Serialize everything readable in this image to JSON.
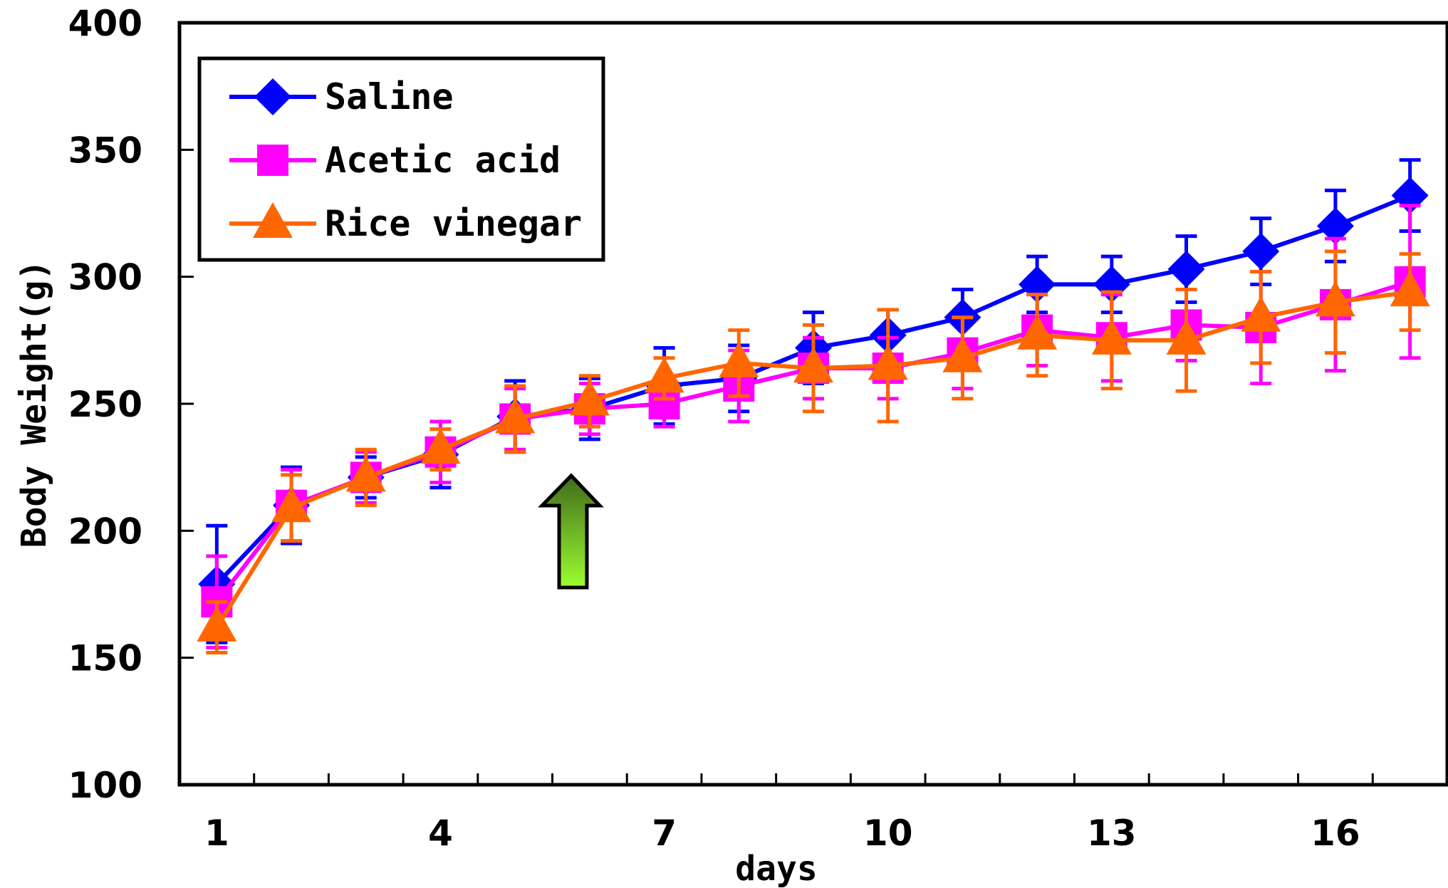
{
  "chart_data": {
    "type": "line",
    "xlabel": "days",
    "ylabel": "Body Weight(g)",
    "xlim": [
      0.5,
      17.5
    ],
    "ylim": [
      100,
      400
    ],
    "x": [
      1,
      2,
      3,
      4,
      5,
      6,
      7,
      8,
      9,
      10,
      11,
      12,
      13,
      14,
      15,
      16,
      17
    ],
    "x_tick_labels": [
      "1",
      "4",
      "7",
      "10",
      "13",
      "16"
    ],
    "x_tick_values": [
      1,
      4,
      7,
      10,
      13,
      16
    ],
    "y_tick_labels": [
      "100",
      "150",
      "200",
      "250",
      "300",
      "350",
      "400"
    ],
    "y_tick_values": [
      100,
      150,
      200,
      250,
      300,
      350,
      400
    ],
    "grid": false,
    "legend_position": "top-left",
    "annotations": [
      {
        "type": "up-arrow",
        "x": 5.75,
        "y": 215,
        "color": "#80e020"
      }
    ],
    "series": [
      {
        "name": "Saline",
        "color": "#0000ff",
        "marker": "diamond",
        "values": [
          179,
          210,
          221,
          230,
          245,
          248,
          257,
          260,
          272,
          277,
          284,
          297,
          297,
          303,
          310,
          320,
          332
        ],
        "error": [
          23,
          15,
          8,
          13,
          14,
          12,
          15,
          13,
          14,
          10,
          11,
          11,
          11,
          13,
          13,
          14,
          14
        ]
      },
      {
        "name": "Acetic acid",
        "color": "#ff00ff",
        "marker": "square",
        "values": [
          172,
          210,
          221,
          231,
          244,
          248,
          250,
          257,
          264,
          264,
          270,
          279,
          276,
          281,
          280,
          289,
          298
        ],
        "error": [
          18,
          14,
          10,
          12,
          12,
          10,
          9,
          14,
          12,
          12,
          14,
          14,
          17,
          14,
          22,
          26,
          30
        ]
      },
      {
        "name": "Rice vinegar",
        "color": "#ff6600",
        "marker": "triangle",
        "values": [
          162,
          209,
          221,
          232,
          244,
          251,
          260,
          266,
          264,
          265,
          268,
          277,
          275,
          275,
          284,
          290,
          294
        ],
        "error": [
          10,
          13,
          11,
          8,
          13,
          10,
          8,
          13,
          17,
          22,
          16,
          16,
          19,
          20,
          18,
          20,
          15
        ]
      }
    ]
  }
}
